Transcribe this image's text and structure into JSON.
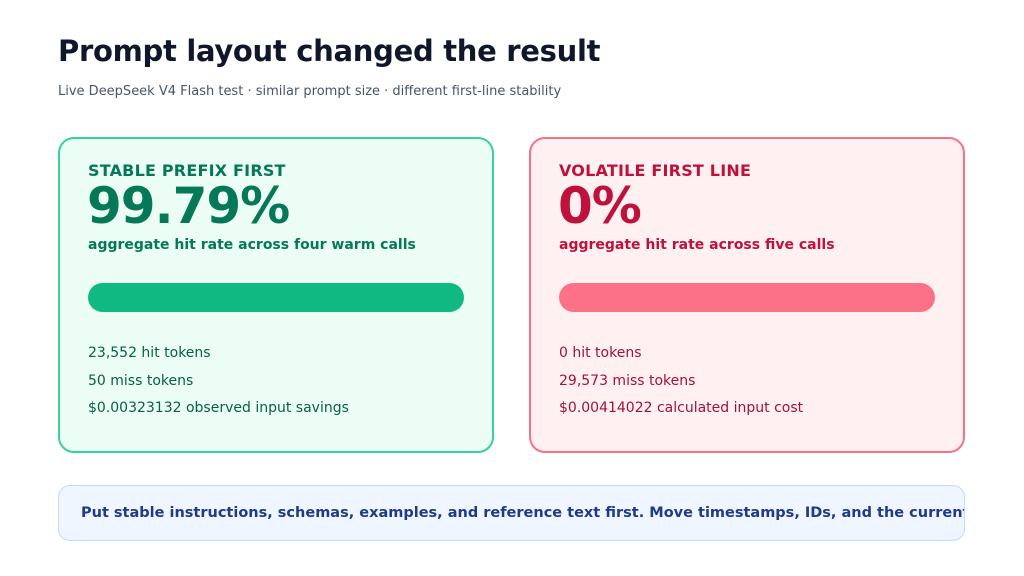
{
  "header": {
    "title": "Prompt layout changed the result",
    "subtitle": "Live DeepSeek V4 Flash test · similar prompt size · different first-line stability"
  },
  "cards": [
    {
      "heading": "STABLE PREFIX FIRST",
      "rate": "99.79%",
      "rate_fraction": 0.9979,
      "description": "aggregate hit rate across four warm calls",
      "stats": [
        "23,552 hit tokens",
        "50 miss tokens",
        "$0.00323132 observed input savings"
      ],
      "accent_color": "#10b981"
    },
    {
      "heading": "VOLATILE FIRST LINE",
      "rate": "0%",
      "rate_fraction": 0,
      "description": "aggregate hit rate across five calls",
      "stats": [
        "0 hit tokens",
        "29,573 miss tokens",
        "$0.00414022 calculated input cost"
      ],
      "accent_color": "#fb7185"
    }
  ],
  "note": {
    "text": "Put stable instructions, schemas, examples, and reference text first. Move timestamps, IDs, and the current question to the end."
  }
}
